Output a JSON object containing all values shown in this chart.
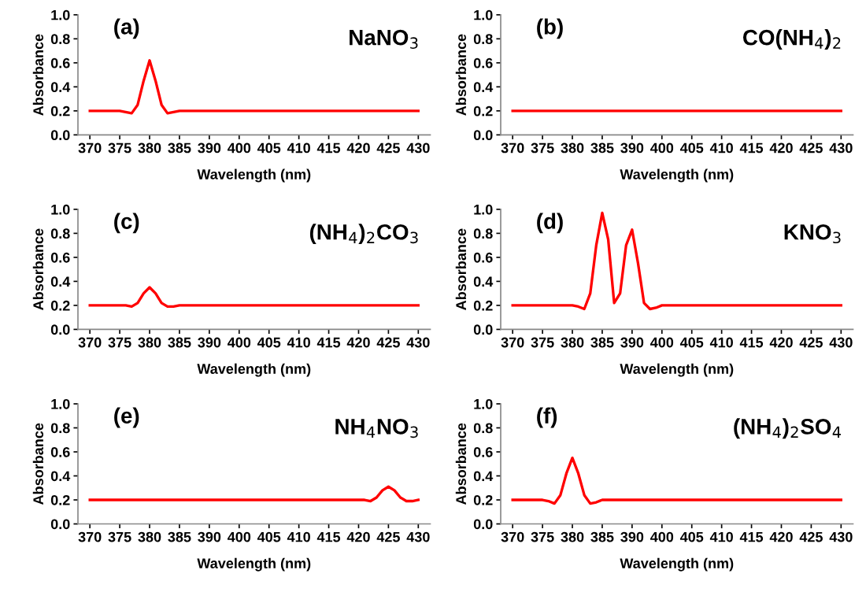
{
  "chart_data": [
    {
      "type": "line",
      "xlabel": "Wavelength (nm)",
      "ylabel": "Absorbance",
      "annotations": [
        "(a)",
        "NaNO$_{3}$"
      ],
      "categories": [
        "370",
        null,
        null,
        null,
        null,
        "375",
        null,
        null,
        null,
        null,
        "380",
        null,
        null,
        null,
        null,
        "385",
        null,
        null,
        null,
        null,
        "390",
        null,
        null,
        null,
        null,
        "400",
        null,
        null,
        null,
        null,
        "405",
        null,
        null,
        null,
        null,
        "410",
        null,
        null,
        null,
        null,
        "415",
        null,
        null,
        null,
        null,
        "420",
        null,
        null,
        null,
        null,
        "425",
        null,
        null,
        null,
        null,
        "430"
      ],
      "ylim": [
        0,
        1
      ],
      "yticks": [
        {
          "value": 0,
          "label": "0.0"
        },
        {
          "value": 0.2,
          "label": "0.2"
        },
        {
          "value": 0.4,
          "label": "0.4"
        },
        {
          "value": 0.6,
          "label": "0.6"
        },
        {
          "value": 0.8,
          "label": "0.8"
        },
        {
          "value": 1,
          "label": "1.0"
        }
      ],
      "grid": false,
      "legend": false,
      "marker": "none",
      "line_style": "solid",
      "series": [
        {
          "color": "#ff0000",
          "values": [
            0.2,
            0.2,
            0.2,
            0.2,
            0.2,
            0.2,
            0.19,
            0.18,
            0.25,
            0.45,
            0.62,
            0.45,
            0.25,
            0.18,
            0.19,
            0.2,
            0.2,
            0.2,
            0.2,
            0.2,
            0.2,
            0.2,
            0.2,
            0.2,
            0.2,
            0.2,
            0.2,
            0.2,
            0.2,
            0.2,
            0.2,
            0.2,
            0.2,
            0.2,
            0.2,
            0.2,
            0.2,
            0.2,
            0.2,
            0.2,
            0.2,
            0.2,
            0.2,
            0.2,
            0.2,
            0.2,
            0.2,
            0.2,
            0.2,
            0.2,
            0.2,
            0.2,
            0.2,
            0.2,
            0.2,
            0.2
          ]
        }
      ]
    },
    {
      "type": "line",
      "xlabel": "Wavelength (nm)",
      "ylabel": "Absorbance",
      "annotations": [
        "(b)",
        "CO(NH$_{4}$)$_{2}$"
      ],
      "categories": [
        "370",
        null,
        null,
        null,
        null,
        "375",
        null,
        null,
        null,
        null,
        "380",
        null,
        null,
        null,
        null,
        "385",
        null,
        null,
        null,
        null,
        "390",
        null,
        null,
        null,
        null,
        "400",
        null,
        null,
        null,
        null,
        "405",
        null,
        null,
        null,
        null,
        "410",
        null,
        null,
        null,
        null,
        "415",
        null,
        null,
        null,
        null,
        "420",
        null,
        null,
        null,
        null,
        "425",
        null,
        null,
        null,
        null,
        "430"
      ],
      "ylim": [
        0,
        1
      ],
      "yticks": [
        {
          "value": 0,
          "label": "0.0"
        },
        {
          "value": 0.2,
          "label": "0.2"
        },
        {
          "value": 0.4,
          "label": "0.4"
        },
        {
          "value": 0.6,
          "label": "0.6"
        },
        {
          "value": 0.8,
          "label": "0.8"
        },
        {
          "value": 1,
          "label": "1.0"
        }
      ],
      "grid": false,
      "legend": false,
      "marker": "none",
      "line_style": "solid",
      "series": [
        {
          "color": "#ff0000",
          "values": [
            0.2,
            0.2,
            0.2,
            0.2,
            0.2,
            0.2,
            0.2,
            0.2,
            0.2,
            0.2,
            0.2,
            0.2,
            0.2,
            0.2,
            0.2,
            0.2,
            0.2,
            0.2,
            0.2,
            0.2,
            0.2,
            0.2,
            0.2,
            0.2,
            0.2,
            0.2,
            0.2,
            0.2,
            0.2,
            0.2,
            0.2,
            0.2,
            0.2,
            0.2,
            0.2,
            0.2,
            0.2,
            0.2,
            0.2,
            0.2,
            0.2,
            0.2,
            0.2,
            0.2,
            0.2,
            0.2,
            0.2,
            0.2,
            0.2,
            0.2,
            0.2,
            0.2,
            0.2,
            0.2,
            0.2,
            0.2
          ]
        }
      ]
    },
    {
      "type": "line",
      "xlabel": "Wavelength (nm)",
      "ylabel": "Absorbance",
      "annotations": [
        "(c)",
        "(NH$_{4}$)$_{2}$CO$_{3}$"
      ],
      "categories": [
        "370",
        null,
        null,
        null,
        null,
        "375",
        null,
        null,
        null,
        null,
        "380",
        null,
        null,
        null,
        null,
        "385",
        null,
        null,
        null,
        null,
        "390",
        null,
        null,
        null,
        null,
        "400",
        null,
        null,
        null,
        null,
        "405",
        null,
        null,
        null,
        null,
        "410",
        null,
        null,
        null,
        null,
        "415",
        null,
        null,
        null,
        null,
        "420",
        null,
        null,
        null,
        null,
        "425",
        null,
        null,
        null,
        null,
        "430"
      ],
      "ylim": [
        0,
        1
      ],
      "yticks": [
        {
          "value": 0,
          "label": "0.0"
        },
        {
          "value": 0.2,
          "label": "0.2"
        },
        {
          "value": 0.4,
          "label": "0.4"
        },
        {
          "value": 0.6,
          "label": "0.6"
        },
        {
          "value": 0.8,
          "label": "0.8"
        },
        {
          "value": 1,
          "label": "1.0"
        }
      ],
      "grid": false,
      "legend": false,
      "marker": "none",
      "line_style": "solid",
      "series": [
        {
          "color": "#ff0000",
          "values": [
            0.2,
            0.2,
            0.2,
            0.2,
            0.2,
            0.2,
            0.2,
            0.19,
            0.22,
            0.3,
            0.35,
            0.3,
            0.22,
            0.19,
            0.19,
            0.2,
            0.2,
            0.2,
            0.2,
            0.2,
            0.2,
            0.2,
            0.2,
            0.2,
            0.2,
            0.2,
            0.2,
            0.2,
            0.2,
            0.2,
            0.2,
            0.2,
            0.2,
            0.2,
            0.2,
            0.2,
            0.2,
            0.2,
            0.2,
            0.2,
            0.2,
            0.2,
            0.2,
            0.2,
            0.2,
            0.2,
            0.2,
            0.2,
            0.2,
            0.2,
            0.2,
            0.2,
            0.2,
            0.2,
            0.2,
            0.2
          ]
        }
      ]
    },
    {
      "type": "line",
      "xlabel": "Wavelength (nm)",
      "ylabel": "Absorbance",
      "annotations": [
        "(d)",
        "KNO$_{3}$"
      ],
      "categories": [
        "370",
        null,
        null,
        null,
        null,
        "375",
        null,
        null,
        null,
        null,
        "380",
        null,
        null,
        null,
        null,
        "385",
        null,
        null,
        null,
        null,
        "390",
        null,
        null,
        null,
        null,
        "400",
        null,
        null,
        null,
        null,
        "405",
        null,
        null,
        null,
        null,
        "410",
        null,
        null,
        null,
        null,
        "415",
        null,
        null,
        null,
        null,
        "420",
        null,
        null,
        null,
        null,
        "425",
        null,
        null,
        null,
        null,
        "430"
      ],
      "ylim": [
        0,
        1
      ],
      "yticks": [
        {
          "value": 0,
          "label": "0.0"
        },
        {
          "value": 0.2,
          "label": "0.2"
        },
        {
          "value": 0.4,
          "label": "0.4"
        },
        {
          "value": 0.6,
          "label": "0.6"
        },
        {
          "value": 0.8,
          "label": "0.8"
        },
        {
          "value": 1,
          "label": "1.0"
        }
      ],
      "grid": false,
      "legend": false,
      "marker": "none",
      "line_style": "solid",
      "series": [
        {
          "color": "#ff0000",
          "values": [
            0.2,
            0.2,
            0.2,
            0.2,
            0.2,
            0.2,
            0.2,
            0.2,
            0.2,
            0.2,
            0.2,
            0.19,
            0.17,
            0.3,
            0.7,
            0.97,
            0.75,
            0.22,
            0.3,
            0.7,
            0.83,
            0.55,
            0.22,
            0.17,
            0.18,
            0.2,
            0.2,
            0.2,
            0.2,
            0.2,
            0.2,
            0.2,
            0.2,
            0.2,
            0.2,
            0.2,
            0.2,
            0.2,
            0.2,
            0.2,
            0.2,
            0.2,
            0.2,
            0.2,
            0.2,
            0.2,
            0.2,
            0.2,
            0.2,
            0.2,
            0.2,
            0.2,
            0.2,
            0.2,
            0.2,
            0.2
          ]
        }
      ]
    },
    {
      "type": "line",
      "xlabel": "Wavelength (nm)",
      "ylabel": "Absorbance",
      "annotations": [
        "(e)",
        "NH$_{4}$NO$_{3}$"
      ],
      "categories": [
        "370",
        null,
        null,
        null,
        null,
        "375",
        null,
        null,
        null,
        null,
        "380",
        null,
        null,
        null,
        null,
        "385",
        null,
        null,
        null,
        null,
        "390",
        null,
        null,
        null,
        null,
        "400",
        null,
        null,
        null,
        null,
        "405",
        null,
        null,
        null,
        null,
        "410",
        null,
        null,
        null,
        null,
        "415",
        null,
        null,
        null,
        null,
        "420",
        null,
        null,
        null,
        null,
        "425",
        null,
        null,
        null,
        null,
        "430"
      ],
      "ylim": [
        0,
        1
      ],
      "yticks": [
        {
          "value": 0,
          "label": "0.0"
        },
        {
          "value": 0.2,
          "label": "0.2"
        },
        {
          "value": 0.4,
          "label": "0.4"
        },
        {
          "value": 0.6,
          "label": "0.6"
        },
        {
          "value": 0.8,
          "label": "0.8"
        },
        {
          "value": 1,
          "label": "1.0"
        }
      ],
      "grid": false,
      "legend": false,
      "marker": "none",
      "line_style": "solid",
      "series": [
        {
          "color": "#ff0000",
          "values": [
            0.2,
            0.2,
            0.2,
            0.2,
            0.2,
            0.2,
            0.2,
            0.2,
            0.2,
            0.2,
            0.2,
            0.2,
            0.2,
            0.2,
            0.2,
            0.2,
            0.2,
            0.2,
            0.2,
            0.2,
            0.2,
            0.2,
            0.2,
            0.2,
            0.2,
            0.2,
            0.2,
            0.2,
            0.2,
            0.2,
            0.2,
            0.2,
            0.2,
            0.2,
            0.2,
            0.2,
            0.2,
            0.2,
            0.2,
            0.2,
            0.2,
            0.2,
            0.2,
            0.2,
            0.2,
            0.2,
            0.2,
            0.19,
            0.22,
            0.28,
            0.31,
            0.28,
            0.22,
            0.19,
            0.19,
            0.2
          ]
        }
      ]
    },
    {
      "type": "line",
      "xlabel": "Wavelength (nm)",
      "ylabel": "Absorbance",
      "annotations": [
        "(f)",
        "(NH$_{4}$)$_{2}$SO$_{4}$"
      ],
      "categories": [
        "370",
        null,
        null,
        null,
        null,
        "375",
        null,
        null,
        null,
        null,
        "380",
        null,
        null,
        null,
        null,
        "385",
        null,
        null,
        null,
        null,
        "390",
        null,
        null,
        null,
        null,
        "400",
        null,
        null,
        null,
        null,
        "405",
        null,
        null,
        null,
        null,
        "410",
        null,
        null,
        null,
        null,
        "415",
        null,
        null,
        null,
        null,
        "420",
        null,
        null,
        null,
        null,
        "425",
        null,
        null,
        null,
        null,
        "430"
      ],
      "ylim": [
        0,
        1
      ],
      "yticks": [
        {
          "value": 0,
          "label": "0.0"
        },
        {
          "value": 0.2,
          "label": "0.2"
        },
        {
          "value": 0.4,
          "label": "0.4"
        },
        {
          "value": 0.6,
          "label": "0.6"
        },
        {
          "value": 0.8,
          "label": "0.8"
        },
        {
          "value": 1,
          "label": "1.0"
        }
      ],
      "grid": false,
      "legend": false,
      "marker": "none",
      "line_style": "solid",
      "series": [
        {
          "color": "#ff0000",
          "values": [
            0.2,
            0.2,
            0.2,
            0.2,
            0.2,
            0.2,
            0.19,
            0.17,
            0.24,
            0.42,
            0.55,
            0.42,
            0.24,
            0.17,
            0.18,
            0.2,
            0.2,
            0.2,
            0.2,
            0.2,
            0.2,
            0.2,
            0.2,
            0.2,
            0.2,
            0.2,
            0.2,
            0.2,
            0.2,
            0.2,
            0.2,
            0.2,
            0.2,
            0.2,
            0.2,
            0.2,
            0.2,
            0.2,
            0.2,
            0.2,
            0.2,
            0.2,
            0.2,
            0.2,
            0.2,
            0.2,
            0.2,
            0.2,
            0.2,
            0.2,
            0.2,
            0.2,
            0.2,
            0.2,
            0.2,
            0.2
          ]
        }
      ]
    }
  ]
}
